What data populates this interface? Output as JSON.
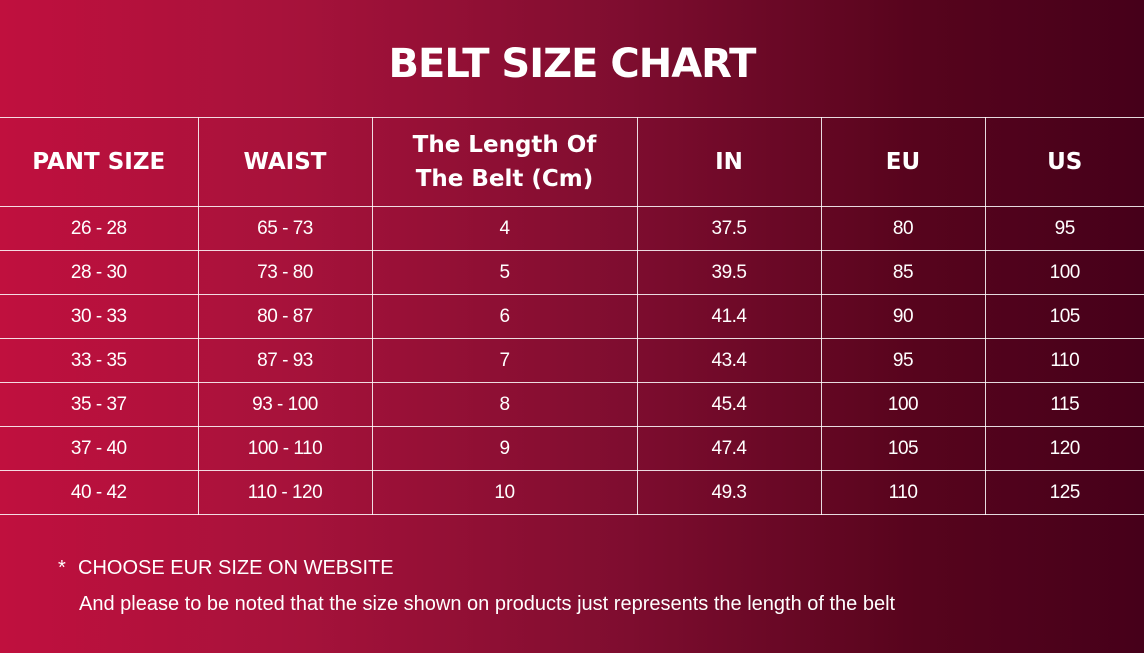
{
  "title": "BELT SIZE CHART",
  "table": {
    "headers": [
      "PANT SIZE",
      "WAIST",
      "The Length Of The Belt (Cm)",
      "IN",
      "EU",
      "US"
    ],
    "rows": [
      [
        "26 - 28",
        "65 - 73",
        "4",
        "37.5",
        "80",
        "95"
      ],
      [
        "28 - 30",
        "73 - 80",
        "5",
        "39.5",
        "85",
        "100"
      ],
      [
        "30 - 33",
        "80 - 87",
        "6",
        "41.4",
        "90",
        "105"
      ],
      [
        "33 - 35",
        "87 - 93",
        "7",
        "43.4",
        "95",
        "110"
      ],
      [
        "35 - 37",
        "93 - 100",
        "8",
        "45.4",
        "100",
        "115"
      ],
      [
        "37 - 40",
        "100 - 110",
        "9",
        "47.4",
        "105",
        "120"
      ],
      [
        "40 - 42",
        "110 - 120",
        "10",
        "49.3",
        "110",
        "125"
      ]
    ]
  },
  "notes": {
    "bullet": "*",
    "line1": "CHOOSE EUR SIZE ON WEBSITE",
    "line2": "And please to be noted that the size shown on products just represents the length of the belt"
  },
  "colors": {
    "gradient_start": "#c0103e",
    "gradient_end": "#46001a",
    "text": "#ffffff"
  }
}
